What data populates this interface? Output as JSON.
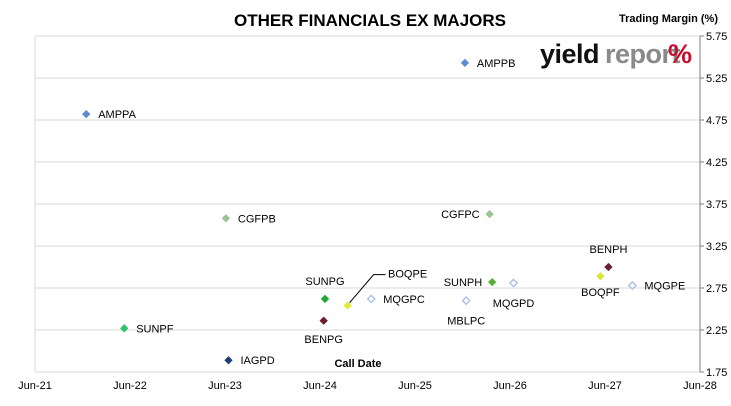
{
  "chart_data": {
    "type": "scatter",
    "title": "OTHER FINANCIALS EX MAJORS",
    "xlabel": "Call Date",
    "ylabel": "Trading Margin (%)",
    "xlim": [
      "2021-06-01",
      "2028-06-01"
    ],
    "ylim": [
      1.75,
      5.75
    ],
    "x_ticks": [
      "Jun-21",
      "Jun-22",
      "Jun-23",
      "Jun-24",
      "Jun-25",
      "Jun-26",
      "Jun-27",
      "Jun-28"
    ],
    "y_ticks": [
      "1.75",
      "2.25",
      "2.75",
      "3.25",
      "3.75",
      "4.25",
      "4.75",
      "5.25",
      "5.75"
    ],
    "gridlines": "horizontal",
    "y_axis_side": "right",
    "points": [
      {
        "label": "AMPPA",
        "x": "2021-12-15",
        "y": 4.82,
        "color": "#5b8bd0",
        "filled": true
      },
      {
        "label": "AMPPB",
        "x": "2025-12-10",
        "y": 5.43,
        "color": "#5b8bd0",
        "filled": true
      },
      {
        "label": "CGFPB",
        "x": "2023-06-05",
        "y": 3.58,
        "color": "#9cc490",
        "filled": true
      },
      {
        "label": "CGFPC",
        "x": "2026-03-15",
        "y": 3.63,
        "color": "#9cc490",
        "filled": true
      },
      {
        "label": "SUNPF",
        "x": "2022-05-10",
        "y": 2.27,
        "color": "#2ec46d",
        "filled": true
      },
      {
        "label": "IAGPD",
        "x": "2023-06-15",
        "y": 1.89,
        "color": "#1f3f74",
        "filled": true
      },
      {
        "label": "SUNPG",
        "x": "2024-06-20",
        "y": 2.62,
        "color": "#1ea83a",
        "filled": true
      },
      {
        "label": "BENPG",
        "x": "2024-06-15",
        "y": 2.36,
        "color": "#6b1e2e",
        "filled": true
      },
      {
        "label": "BOQPE",
        "x": "2024-09-15",
        "y": 2.54,
        "color": "#e3e83c",
        "filled": true
      },
      {
        "label": "MQGPC",
        "x": "2024-12-15",
        "y": 2.62,
        "color": "#a9c2ea",
        "filled": false
      },
      {
        "label": "SUNPH",
        "x": "2026-03-25",
        "y": 2.82,
        "color": "#5aae3c",
        "filled": true
      },
      {
        "label": "MBLPC",
        "x": "2025-12-15",
        "y": 2.6,
        "color": "#a9c2ea",
        "filled": false
      },
      {
        "label": "MQGPD",
        "x": "2026-06-15",
        "y": 2.81,
        "color": "#a9c2ea",
        "filled": false
      },
      {
        "label": "BENPH",
        "x": "2027-06-15",
        "y": 3.0,
        "color": "#6b1e2e",
        "filled": true
      },
      {
        "label": "BOQPF",
        "x": "2027-05-15",
        "y": 2.89,
        "color": "#d8e63a",
        "filled": true
      },
      {
        "label": "MQGPE",
        "x": "2027-09-15",
        "y": 2.78,
        "color": "#a9c2ea",
        "filled": false
      }
    ]
  },
  "logo": {
    "part1": "yield",
    "part2": "report",
    "part3": "%"
  }
}
